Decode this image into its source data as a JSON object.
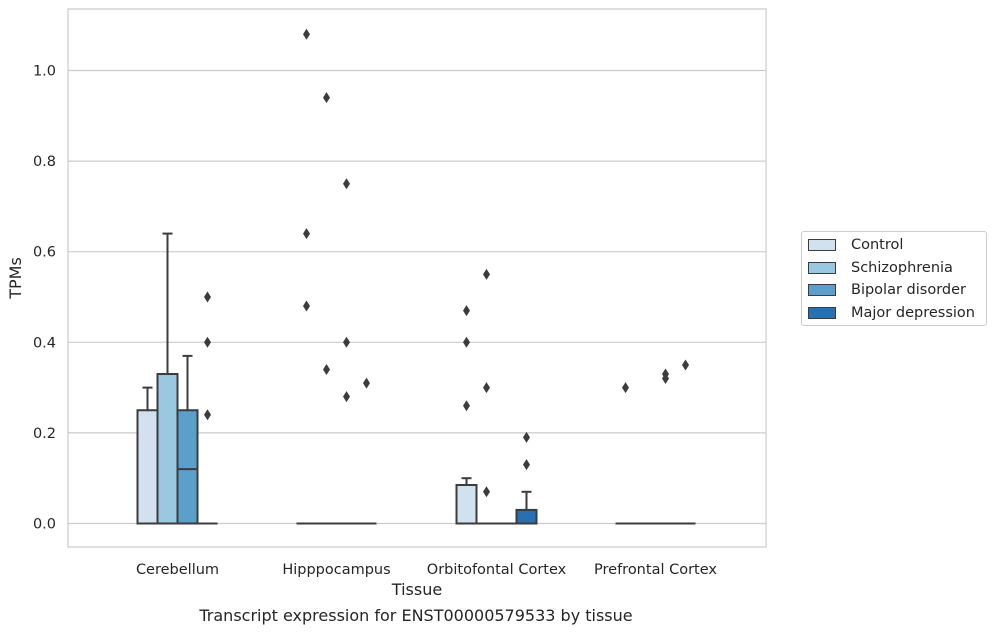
{
  "chart_data": {
    "type": "box",
    "xlabel": "Tissue",
    "ylabel": "TPMs",
    "caption": "Transcript expression for ENST00000579533 by tissue",
    "ylim": [
      -0.05,
      1.14
    ],
    "yticks": [
      "0.0",
      "0.2",
      "0.4",
      "0.6",
      "0.8",
      "1.0"
    ],
    "grid": "horizontal",
    "legend_position": "right",
    "categories": [
      "Cerebellum",
      "Hipppocampus",
      "Orbitofontal Cortex",
      "Prefrontal Cortex"
    ],
    "colors": {
      "Control": "#d1e1ef",
      "Schizophrenia": "#9ac8e0",
      "Bipolar disorder": "#5c9fcb",
      "Major depression": "#2870b0",
      "line": "#3c3c3c"
    },
    "series": [
      {
        "name": "Control",
        "boxes": [
          {
            "q1": 0,
            "median": 0,
            "q3": 0.25,
            "whisker_low": 0,
            "whisker_high": 0.3,
            "outliers": []
          },
          {
            "q1": 0,
            "median": 0,
            "q3": 0,
            "whisker_low": 0,
            "whisker_high": 0,
            "outliers": [
              0.48,
              0.64,
              1.08
            ]
          },
          {
            "q1": 0,
            "median": 0,
            "q3": 0.085,
            "whisker_low": 0,
            "whisker_high": 0.1,
            "outliers": [
              0.26,
              0.4,
              0.47
            ]
          },
          {
            "q1": 0,
            "median": 0,
            "q3": 0,
            "whisker_low": 0,
            "whisker_high": 0,
            "outliers": [
              0.3
            ]
          }
        ]
      },
      {
        "name": "Schizophrenia",
        "boxes": [
          {
            "q1": 0,
            "median": 0,
            "q3": 0.33,
            "whisker_low": 0,
            "whisker_high": 0.64,
            "outliers": []
          },
          {
            "q1": 0,
            "median": 0,
            "q3": 0,
            "whisker_low": 0,
            "whisker_high": 0,
            "outliers": [
              0.34,
              0.94
            ]
          },
          {
            "q1": 0,
            "median": 0,
            "q3": 0,
            "whisker_low": 0,
            "whisker_high": 0,
            "outliers": [
              0.07,
              0.3,
              0.55
            ]
          },
          {
            "q1": 0,
            "median": 0,
            "q3": 0,
            "whisker_low": 0,
            "whisker_high": 0,
            "outliers": []
          }
        ]
      },
      {
        "name": "Bipolar disorder",
        "boxes": [
          {
            "q1": 0,
            "median": 0.12,
            "q3": 0.25,
            "whisker_low": 0,
            "whisker_high": 0.37,
            "outliers": []
          },
          {
            "q1": 0,
            "median": 0,
            "q3": 0,
            "whisker_low": 0,
            "whisker_high": 0,
            "outliers": [
              0.28,
              0.4,
              0.75
            ]
          },
          {
            "q1": 0,
            "median": 0,
            "q3": 0,
            "whisker_low": 0,
            "whisker_high": 0,
            "outliers": []
          },
          {
            "q1": 0,
            "median": 0,
            "q3": 0,
            "whisker_low": 0,
            "whisker_high": 0,
            "outliers": [
              0.32,
              0.33
            ]
          }
        ]
      },
      {
        "name": "Major depression",
        "boxes": [
          {
            "q1": 0,
            "median": 0,
            "q3": 0,
            "whisker_low": 0,
            "whisker_high": 0,
            "outliers": [
              0.24,
              0.4,
              0.5
            ]
          },
          {
            "q1": 0,
            "median": 0,
            "q3": 0,
            "whisker_low": 0,
            "whisker_high": 0,
            "outliers": [
              0.31
            ]
          },
          {
            "q1": 0,
            "median": 0,
            "q3": 0.03,
            "whisker_low": 0,
            "whisker_high": 0.07,
            "outliers": [
              0.13,
              0.19
            ]
          },
          {
            "q1": 0,
            "median": 0,
            "q3": 0,
            "whisker_low": 0,
            "whisker_high": 0,
            "outliers": [
              0.35
            ]
          }
        ]
      }
    ]
  }
}
